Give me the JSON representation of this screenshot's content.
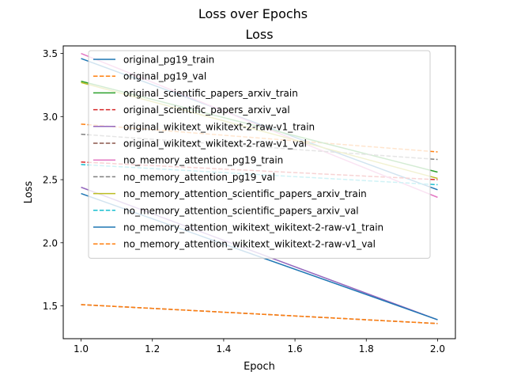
{
  "figure": {
    "suptitle": "Loss over Epochs"
  },
  "chart_data": {
    "type": "line",
    "title": "Loss",
    "xlabel": "Epoch",
    "ylabel": "Loss",
    "xlim": [
      0.95,
      2.05
    ],
    "ylim": [
      1.24,
      3.56
    ],
    "xticks": [
      1.0,
      1.2,
      1.4,
      1.6,
      1.8,
      2.0
    ],
    "xtick_labels": [
      "1.0",
      "1.2",
      "1.4",
      "1.6",
      "1.8",
      "2.0"
    ],
    "yticks": [
      1.5,
      2.0,
      2.5,
      3.0,
      3.5
    ],
    "ytick_labels": [
      "1.5",
      "2.0",
      "2.5",
      "3.0",
      "3.5"
    ],
    "grid": false,
    "legend_position": "upper-center",
    "x": [
      1,
      2
    ],
    "series": [
      {
        "name": "original_pg19_train",
        "values": [
          3.46,
          2.42
        ],
        "color": "#1f77b4",
        "dashed": false
      },
      {
        "name": "original_pg19_val",
        "values": [
          2.94,
          2.72
        ],
        "color": "#ff7f0e",
        "dashed": true
      },
      {
        "name": "original_scientific_papers_arxiv_train",
        "values": [
          3.28,
          2.56
        ],
        "color": "#2ca02c",
        "dashed": false
      },
      {
        "name": "original_scientific_papers_arxiv_val",
        "values": [
          2.64,
          2.5
        ],
        "color": "#d62728",
        "dashed": true
      },
      {
        "name": "original_wikitext_wikitext-2-raw-v1_train",
        "values": [
          2.44,
          1.39
        ],
        "color": "#9467bd",
        "dashed": false
      },
      {
        "name": "original_wikitext_wikitext-2-raw-v1_val",
        "values": [
          1.51,
          1.36
        ],
        "color": "#8c564b",
        "dashed": true
      },
      {
        "name": "no_memory_attention_pg19_train",
        "values": [
          3.5,
          2.36
        ],
        "color": "#e377c2",
        "dashed": false
      },
      {
        "name": "no_memory_attention_pg19_val",
        "values": [
          2.86,
          2.66
        ],
        "color": "#7f7f7f",
        "dashed": true
      },
      {
        "name": "no_memory_attention_scientific_papers_arxiv_train",
        "values": [
          3.27,
          2.51
        ],
        "color": "#bcbd22",
        "dashed": false
      },
      {
        "name": "no_memory_attention_scientific_papers_arxiv_val",
        "values": [
          2.62,
          2.46
        ],
        "color": "#17becf",
        "dashed": true
      },
      {
        "name": "no_memory_attention_wikitext_wikitext-2-raw-v1_train",
        "values": [
          2.39,
          1.39
        ],
        "color": "#1f77b4",
        "dashed": false
      },
      {
        "name": "no_memory_attention_wikitext_wikitext-2-raw-v1_val",
        "values": [
          1.51,
          1.36
        ],
        "color": "#ff7f0e",
        "dashed": true
      }
    ]
  }
}
